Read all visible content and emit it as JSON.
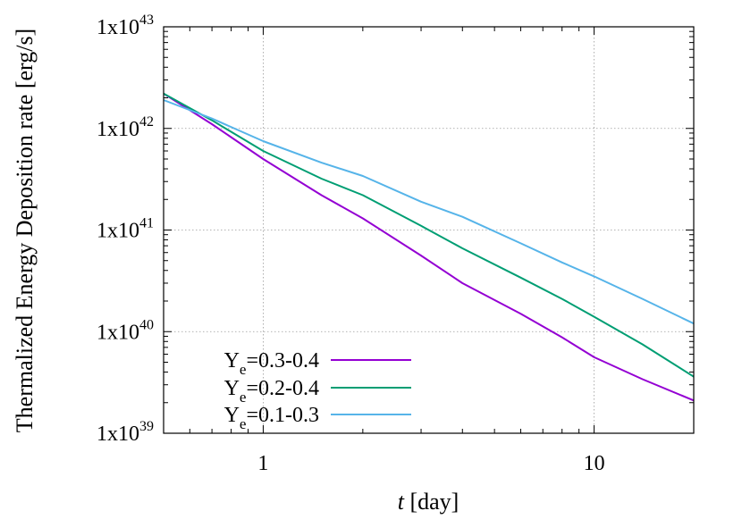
{
  "chart_data": {
    "type": "line",
    "title": "",
    "xlabel": {
      "italic": "t",
      "rest": " [day]"
    },
    "ylabel": "Thermalized Energy Deposition rate [erg/s]",
    "x_scale": "log",
    "y_scale": "log",
    "xlim": [
      0.5,
      20
    ],
    "ylim": [
      1e+39,
      1e+43
    ],
    "grid": true,
    "legend_position": "bottom-left",
    "x_ticks": [
      {
        "value": 1,
        "label": "1"
      },
      {
        "value": 10,
        "label": "10"
      }
    ],
    "y_ticks": [
      {
        "value": 1e+39,
        "base": "1x10",
        "exp": "39"
      },
      {
        "value": 1e+40,
        "base": "1x10",
        "exp": "40"
      },
      {
        "value": 1e+41,
        "base": "1x10",
        "exp": "41"
      },
      {
        "value": 1e+42,
        "base": "1x10",
        "exp": "42"
      },
      {
        "value": 1e+43,
        "base": "1x10",
        "exp": "43"
      }
    ],
    "series": [
      {
        "name": "Ye=0.3-0.4",
        "label_main": "Y",
        "label_sub": "e",
        "label_rest": "=0.3-0.4",
        "color": "#9400d3",
        "x": [
          0.5,
          0.7,
          1.0,
          1.5,
          2.0,
          3.0,
          4.0,
          6.0,
          8.0,
          10.0,
          14.0,
          20.0
        ],
        "y": [
          2.2e+42,
          1.1e+42,
          5e+41,
          2.2e+41,
          1.3e+41,
          5.6e+40,
          3e+40,
          1.5e+40,
          8.8e+39,
          5.6e+39,
          3.4e+39,
          2.1e+39
        ]
      },
      {
        "name": "Ye=0.2-0.4",
        "label_main": "Y",
        "label_sub": "e",
        "label_rest": "=0.2-0.4",
        "color": "#009e73",
        "x": [
          0.5,
          0.7,
          1.0,
          1.5,
          2.0,
          3.0,
          4.0,
          6.0,
          8.0,
          10.0,
          14.0,
          20.0
        ],
        "y": [
          2.2e+42,
          1.2e+42,
          6e+41,
          3.2e+41,
          2.2e+41,
          1.1e+41,
          6.6e+40,
          3.4e+40,
          2.1e+40,
          1.4e+40,
          7.5e+39,
          3.6e+39
        ]
      },
      {
        "name": "Ye=0.1-0.3",
        "label_main": "Y",
        "label_sub": "e",
        "label_rest": "=0.1-0.3",
        "color": "#56b4e9",
        "x": [
          0.5,
          0.7,
          1.0,
          1.5,
          2.0,
          3.0,
          4.0,
          6.0,
          8.0,
          10.0,
          14.0,
          20.0
        ],
        "y": [
          1.9e+42,
          1.25e+42,
          7.5e+41,
          4.6e+41,
          3.4e+41,
          1.9e+41,
          1.35e+41,
          7.4e+40,
          4.8e+40,
          3.5e+40,
          2.1e+40,
          1.2e+40
        ]
      }
    ]
  }
}
